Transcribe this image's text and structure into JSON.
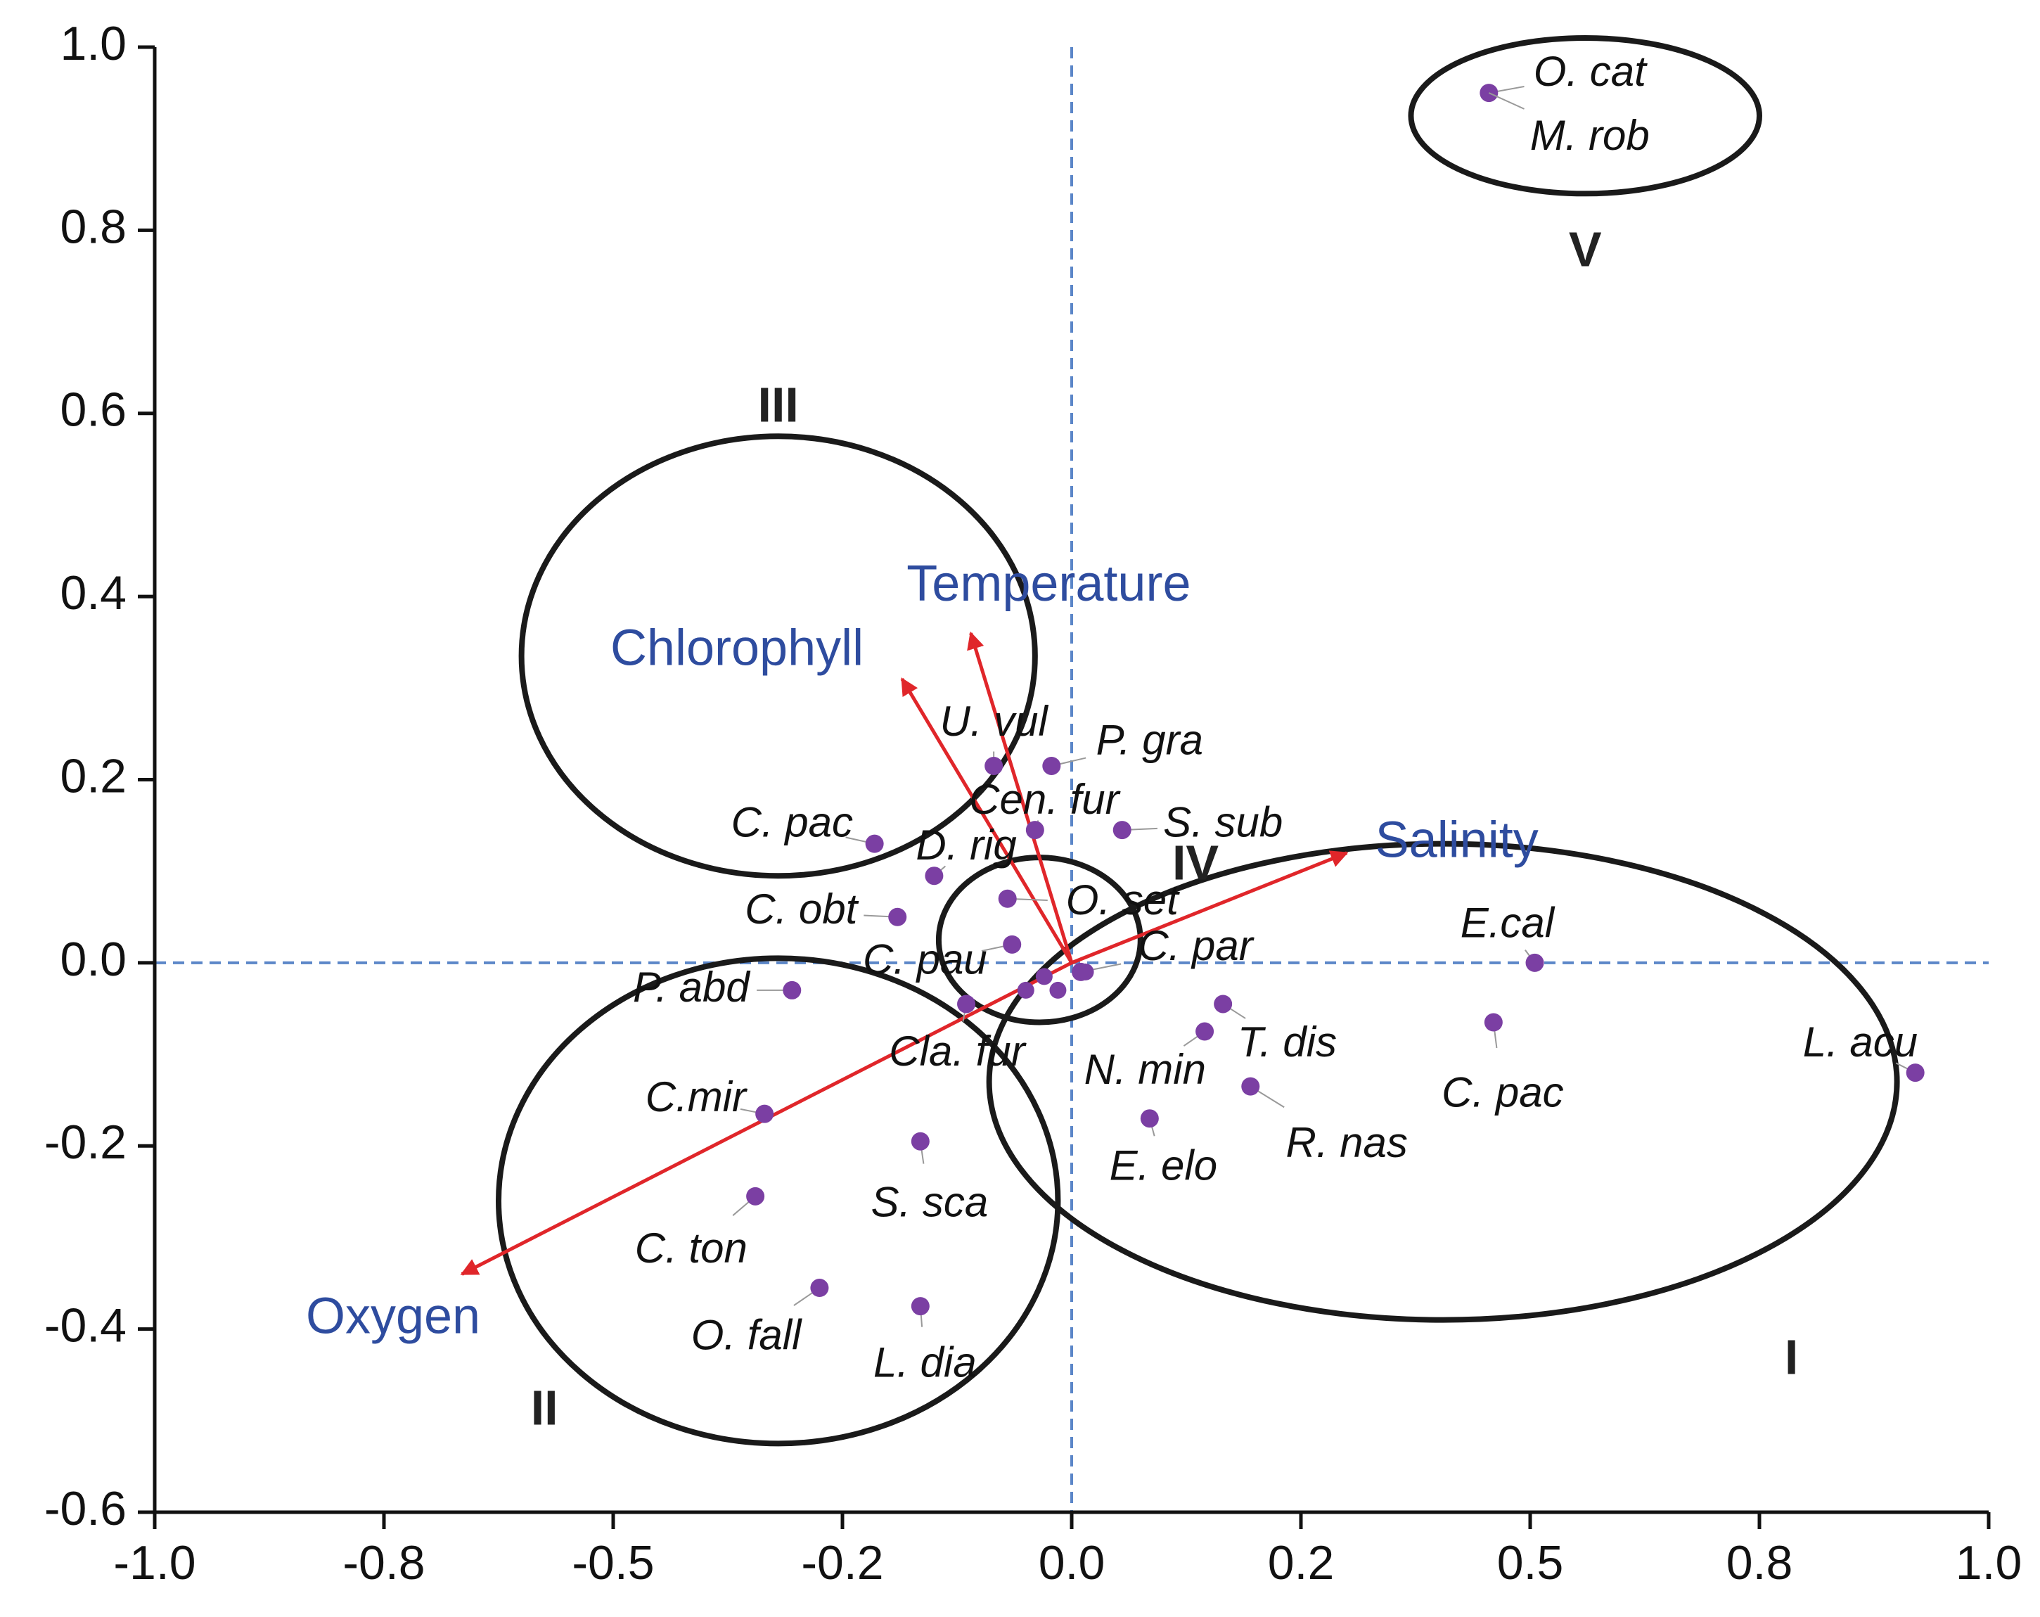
{
  "chart_data": {
    "type": "scatter",
    "title": "",
    "xlabel": "",
    "ylabel": "",
    "xlim": [
      -1.0,
      1.0
    ],
    "ylim": [
      -0.6,
      1.0
    ],
    "grid": false,
    "reference_lines": {
      "x": 0.0,
      "y": 0.0,
      "style": "dashed"
    },
    "x_ticks": [
      {
        "value": -1.0,
        "label": "-1.0"
      },
      {
        "value": -0.75,
        "label": "-0.8"
      },
      {
        "value": -0.5,
        "label": "-0.5"
      },
      {
        "value": -0.25,
        "label": "-0.2"
      },
      {
        "value": 0.0,
        "label": "0.0"
      },
      {
        "value": 0.25,
        "label": "0.2"
      },
      {
        "value": 0.5,
        "label": "0.5"
      },
      {
        "value": 0.75,
        "label": "0.8"
      },
      {
        "value": 1.0,
        "label": "1.0"
      }
    ],
    "y_ticks": [
      {
        "value": 1.0,
        "label": "1.0"
      },
      {
        "value": 0.8,
        "label": "0.8"
      },
      {
        "value": 0.6,
        "label": "0.6"
      },
      {
        "value": 0.4,
        "label": "0.4"
      },
      {
        "value": 0.2,
        "label": "0.2"
      },
      {
        "value": 0.0,
        "label": "0.0"
      },
      {
        "value": -0.2,
        "label": "-0.2"
      },
      {
        "value": -0.4,
        "label": "-0.4"
      },
      {
        "value": -0.6,
        "label": "-0.6"
      }
    ],
    "species": [
      {
        "label": "O. cat",
        "x": 0.455,
        "y": 0.95,
        "label_at": [
          0.565,
          0.97
        ]
      },
      {
        "label": "M. rob",
        "x": 0.455,
        "y": 0.95,
        "label_at": [
          0.565,
          0.9
        ],
        "shared_point": true
      },
      {
        "label": "U. vul",
        "x": -0.085,
        "y": 0.215,
        "label_at": [
          -0.085,
          0.26
        ]
      },
      {
        "label": "P. gra",
        "x": -0.022,
        "y": 0.215,
        "label_at": [
          0.085,
          0.24
        ]
      },
      {
        "label": "Cen. fur",
        "x": -0.04,
        "y": 0.145,
        "label_at": [
          -0.03,
          0.175
        ]
      },
      {
        "label": "S. sub",
        "x": 0.055,
        "y": 0.145,
        "label_at": [
          0.165,
          0.15
        ]
      },
      {
        "label": "C. pac",
        "x": -0.215,
        "y": 0.13,
        "label_at": [
          -0.305,
          0.15
        ]
      },
      {
        "label": "D. rig",
        "x": -0.15,
        "y": 0.095,
        "label_at": [
          -0.115,
          0.125
        ]
      },
      {
        "label": "O. set",
        "x": -0.07,
        "y": 0.07,
        "label_at": [
          0.055,
          0.065
        ]
      },
      {
        "label": "C. obt",
        "x": -0.19,
        "y": 0.05,
        "label_at": [
          -0.295,
          0.055
        ]
      },
      {
        "label": "C. pau",
        "x": -0.065,
        "y": 0.02,
        "label_at": [
          -0.16,
          0.0
        ]
      },
      {
        "label": "C. par",
        "x": 0.01,
        "y": -0.01,
        "label_at": [
          0.135,
          0.015
        ]
      },
      {
        "label": "P. abd",
        "x": -0.305,
        "y": -0.03,
        "label_at": [
          -0.415,
          -0.03
        ]
      },
      {
        "label": "Cla. fur",
        "x": -0.115,
        "y": -0.045,
        "label_at": [
          -0.125,
          -0.1
        ]
      },
      {
        "label": "T. dis",
        "x": 0.165,
        "y": -0.045,
        "label_at": [
          0.235,
          -0.09
        ]
      },
      {
        "label": "N. min",
        "x": 0.145,
        "y": -0.075,
        "label_at": [
          0.08,
          -0.12
        ]
      },
      {
        "label": "E.cal",
        "x": 0.505,
        "y": 0.0,
        "label_at": [
          0.475,
          0.04
        ]
      },
      {
        "label": "C. pac",
        "x": 0.46,
        "y": -0.065,
        "label_at": [
          0.47,
          -0.145
        ]
      },
      {
        "label": "L. acu",
        "x": 0.92,
        "y": -0.12,
        "label_at": [
          0.86,
          -0.09
        ]
      },
      {
        "label": "R. nas",
        "x": 0.195,
        "y": -0.135,
        "label_at": [
          0.3,
          -0.2
        ]
      },
      {
        "label": "E. elo",
        "x": 0.085,
        "y": -0.17,
        "label_at": [
          0.1,
          -0.225
        ]
      },
      {
        "label": "C.mir",
        "x": -0.335,
        "y": -0.165,
        "label_at": [
          -0.41,
          -0.15
        ]
      },
      {
        "label": "S. sca",
        "x": -0.165,
        "y": -0.195,
        "label_at": [
          -0.155,
          -0.265
        ]
      },
      {
        "label": "C. ton",
        "x": -0.345,
        "y": -0.255,
        "label_at": [
          -0.415,
          -0.315
        ]
      },
      {
        "label": "O. fall",
        "x": -0.275,
        "y": -0.355,
        "label_at": [
          -0.355,
          -0.41
        ]
      },
      {
        "label": "L. dia",
        "x": -0.165,
        "y": -0.375,
        "label_at": [
          -0.16,
          -0.44
        ]
      }
    ],
    "center_points": [
      {
        "x": -0.03,
        "y": -0.015
      },
      {
        "x": -0.05,
        "y": -0.03
      },
      {
        "x": -0.015,
        "y": -0.03
      },
      {
        "x": 0.015,
        "y": -0.01
      }
    ],
    "environment_vectors": [
      {
        "name": "Temperature",
        "x": -0.11,
        "y": 0.36,
        "label_at": [
          -0.025,
          0.41
        ]
      },
      {
        "name": "Chlorophyll",
        "x": -0.185,
        "y": 0.31,
        "label_at": [
          -0.365,
          0.34
        ]
      },
      {
        "name": "Salinity",
        "x": 0.3,
        "y": 0.12,
        "label_at": [
          0.42,
          0.13
        ]
      },
      {
        "name": "Oxygen",
        "x": -0.665,
        "y": -0.34,
        "label_at": [
          -0.74,
          -0.39
        ]
      }
    ],
    "groups": [
      {
        "label": "I",
        "cx": 0.405,
        "cy": -0.13,
        "rx": 0.495,
        "ry": 0.26,
        "label_at": [
          0.785,
          -0.435
        ]
      },
      {
        "label": "II",
        "cx": -0.32,
        "cy": -0.26,
        "rx": 0.305,
        "ry": 0.265,
        "label_at": [
          -0.575,
          -0.49
        ]
      },
      {
        "label": "III",
        "cx": -0.32,
        "cy": 0.335,
        "rx": 0.28,
        "ry": 0.24,
        "label_at": [
          -0.32,
          0.605
        ]
      },
      {
        "label": "IV",
        "cx": -0.035,
        "cy": 0.025,
        "rx": 0.11,
        "ry": 0.09,
        "label_at": [
          0.135,
          0.105
        ]
      },
      {
        "label": "V",
        "cx": 0.56,
        "cy": 0.925,
        "rx": 0.19,
        "ry": 0.085,
        "label_at": [
          0.56,
          0.775
        ]
      }
    ],
    "colors": {
      "axis": "#111111",
      "reference_line": "#5b86c8",
      "point": "#7b3fa3",
      "vector": "#e0262a",
      "env_label": "#2e4c9f",
      "ellipse": "#1a1a1a"
    }
  }
}
